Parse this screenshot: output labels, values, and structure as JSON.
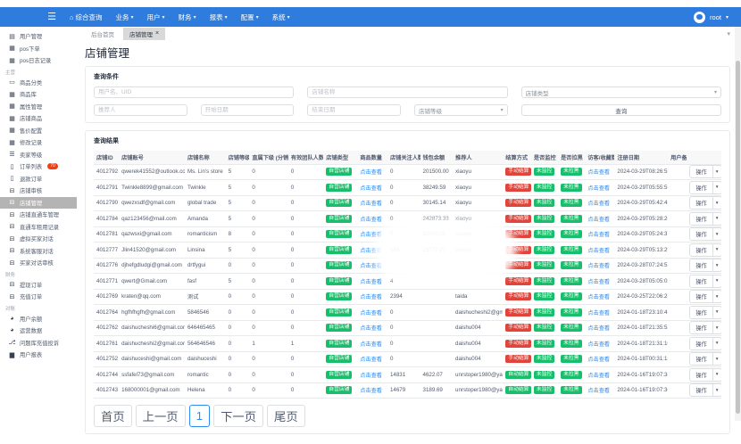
{
  "icons": {
    "hamburger": "☰",
    "home": "⌂",
    "caret-down": "▾",
    "close": "×",
    "file-text": "▤",
    "table": "▦",
    "desktop": "▭",
    "list": "☰",
    "file": "▯",
    "window": "⊟",
    "pie-chart": "◕",
    "sitemap": "⎇",
    "bar-chart": "▆"
  },
  "colors": {
    "navbar": "#2e7dde",
    "link": "#2d8cf0",
    "badge_green": "#19be6b",
    "badge_red": "#e0443a",
    "sidebar_badge": "#ed4014",
    "active_item_bg": "#b4b4b4"
  },
  "topbar": {
    "nav": [
      {
        "label": "综合查询",
        "icon": "home",
        "caret": false
      },
      {
        "label": "业务",
        "caret": true
      },
      {
        "label": "用户",
        "caret": true
      },
      {
        "label": "财务",
        "caret": true
      },
      {
        "label": "报表",
        "caret": true
      },
      {
        "label": "配置",
        "caret": true
      },
      {
        "label": "系统",
        "caret": true
      }
    ],
    "user": {
      "name": "root"
    }
  },
  "sidebar": {
    "items": [
      {
        "icon": "file-text",
        "label": "用户管理"
      },
      {
        "icon": "table",
        "label": "pos下单"
      },
      {
        "icon": "table",
        "label": "pos日志记录"
      },
      {
        "section": "主营"
      },
      {
        "icon": "desktop",
        "label": "商品分类"
      },
      {
        "icon": "table",
        "label": "商品库"
      },
      {
        "icon": "table",
        "label": "属性管理"
      },
      {
        "icon": "table",
        "label": "店铺商品"
      },
      {
        "icon": "table",
        "label": "售价配置"
      },
      {
        "icon": "table",
        "label": "修改记录"
      },
      {
        "icon": "list",
        "label": "卖家等级"
      },
      {
        "icon": "file",
        "label": "订单列表",
        "badge": "70"
      },
      {
        "icon": "file",
        "label": "退款订单"
      },
      {
        "icon": "window",
        "label": "店铺审核"
      },
      {
        "icon": "window",
        "label": "店铺管理",
        "active": true
      },
      {
        "icon": "window",
        "label": "店铺直通车管理"
      },
      {
        "icon": "window",
        "label": "直通车租用记录"
      },
      {
        "icon": "window",
        "label": "虚拟买家对话"
      },
      {
        "icon": "window",
        "label": "系统客服对话"
      },
      {
        "icon": "window",
        "label": "买家对话审核"
      },
      {
        "section": "财务"
      },
      {
        "icon": "window",
        "label": "提现订单"
      },
      {
        "icon": "window",
        "label": "充值订单"
      },
      {
        "section": "对账"
      },
      {
        "icon": "pie-chart",
        "label": "用户余额"
      },
      {
        "icon": "pie-chart",
        "label": "运营数据"
      },
      {
        "icon": "sitemap",
        "label": "问题库充值投诉"
      },
      {
        "icon": "bar-chart",
        "label": "用户报表"
      }
    ]
  },
  "tabs": {
    "home": "后台首页",
    "current": "店铺管理"
  },
  "page_title": "店铺管理",
  "filter": {
    "card_title": "查询条件",
    "username_placeholder": "用户名、UID",
    "store_name_placeholder": "店铺名称",
    "referrer_placeholder": "推荐人",
    "start_date_placeholder": "开始日期",
    "end_date_placeholder": "结束日期",
    "store_type_label": "店铺类型",
    "store_level_label": "店铺等级",
    "search_label": "查询"
  },
  "results": {
    "card_title": "查询结果",
    "columns": [
      "店铺ID",
      "店铺账号",
      "店铺名称",
      "店铺等级",
      "直属下级 (分销数)",
      "有效团队人数",
      "店铺类型",
      "商品数量",
      "店铺关注人数",
      "钱包余额",
      "推荐人",
      "结算方式",
      "是否监控",
      "是否拉黑",
      "访客/收藏数",
      "注册日期",
      "用户备注",
      ""
    ],
    "badges": {
      "store_type": "自营店铺",
      "monitor": "未监控",
      "blacklist": "未拉黑"
    },
    "view_link": "点击查看",
    "action": {
      "label": "操作",
      "caret": "▾"
    },
    "rows": [
      {
        "id": "4012792",
        "account": "qwerek41552@outlook.com",
        "name": "Ms. Lin's store",
        "level": "5",
        "sub": "0",
        "team": "0",
        "followers": "0",
        "balance": "201500.00",
        "referrer": "xiaoyu",
        "settle": "手动结算",
        "date": "2024-03-29T08:26:55"
      },
      {
        "id": "4012791",
        "account": "Twinkle8899@gmail.com",
        "name": "Twinkle",
        "level": "5",
        "sub": "0",
        "team": "0",
        "followers": "0",
        "balance": "38249.59",
        "referrer": "xiaoyu",
        "settle": "手动结算",
        "date": "2024-03-29T05:55:55"
      },
      {
        "id": "4012790",
        "account": "qwezxsdf@gmail.com",
        "name": "global trade",
        "level": "5",
        "sub": "0",
        "team": "0",
        "followers": "0",
        "balance": "30145.14",
        "referrer": "xiaoyu",
        "settle": "手动结算",
        "date": "2024-03-29T05:42:45"
      },
      {
        "id": "4012784",
        "account": "qaz123456@mail.com",
        "name": "Amanda",
        "level": "5",
        "sub": "0",
        "team": "0",
        "followers": "0",
        "balance": "242873.33",
        "referrer": "xiaoyu",
        "settle": "手动结算",
        "date": "2024-03-29T05:28:26"
      },
      {
        "id": "4012781",
        "account": "qazwsxi@gmail.com",
        "name": "romanticism",
        "level": "8",
        "sub": "0",
        "team": "0",
        "followers": "0",
        "balance": "20000.00",
        "referrer": "xiaoyu",
        "settle": "手动结算",
        "date": "2024-03-29T05:24:37"
      },
      {
        "id": "4012777",
        "account": "Jlin41520@gmail.com",
        "name": "Linsina",
        "level": "5",
        "sub": "0",
        "team": "0",
        "followers": "548",
        "balance": "23737.27",
        "referrer": "xiaoyu",
        "settle": "手动结算",
        "date": "2024-03-29T05:13:29"
      },
      {
        "id": "4012776",
        "account": "djhefgdludgi@gmail.com",
        "name": "drtfygui",
        "level": "0",
        "sub": "0",
        "team": "0",
        "followers": "",
        "balance": "",
        "referrer": "",
        "settle": "手动结算",
        "date": "2024-03-28T07:24:51"
      },
      {
        "id": "4012771",
        "account": "qwert@Gmail.com",
        "name": "fasf",
        "level": "5",
        "sub": "0",
        "team": "0",
        "followers": "4",
        "balance": "",
        "referrer": "",
        "settle": "手动结算",
        "date": "2024-03-28T05:05:02"
      },
      {
        "id": "4012769",
        "account": "kraten@qq.com",
        "name": "测试",
        "level": "0",
        "sub": "0",
        "team": "0",
        "followers": "2394",
        "balance": "",
        "referrer": "taida",
        "settle": "手动结算",
        "date": "2024-03-25T22:06:28"
      },
      {
        "id": "4012764",
        "account": "hgfhfhgfh@gmail.com",
        "name": "5846546",
        "level": "0",
        "sub": "0",
        "team": "0",
        "followers": "0",
        "balance": "",
        "referrer": "daishucheshi2@gmail.com",
        "settle": "手动结算",
        "date": "2024-01-18T23:10:45"
      },
      {
        "id": "4012762",
        "account": "daishucheshi6@gmail.com",
        "name": "646465465",
        "level": "0",
        "sub": "0",
        "team": "0",
        "followers": "0",
        "balance": "",
        "referrer": "daishu004",
        "settle": "手动结算",
        "date": "2024-01-18T21:35:53"
      },
      {
        "id": "4012761",
        "account": "daishucheshi2@gmail.com",
        "name": "564646546",
        "level": "0",
        "sub": "1",
        "team": "1",
        "followers": "0",
        "balance": "",
        "referrer": "daishu004",
        "settle": "手动结算",
        "date": "2024-01-18T21:31:10"
      },
      {
        "id": "4012752",
        "account": "daishuceshi@gmail.com",
        "name": "daishuceshi",
        "level": "0",
        "sub": "0",
        "team": "0",
        "followers": "0",
        "balance": "",
        "referrer": "daishu004",
        "settle": "手动结算",
        "date": "2024-01-18T00:31:15"
      },
      {
        "id": "4012744",
        "account": "ssfafel73@gmail.com",
        "name": "romantic",
        "level": "0",
        "sub": "0",
        "team": "0",
        "followers": "14831",
        "balance": "4622.07",
        "referrer": "unrstoper1980@yahoo.com",
        "settle": "自动结算",
        "date": "2024-01-16T19:07:38"
      },
      {
        "id": "4012743",
        "account": "168000001@gmail.com",
        "name": "Helena",
        "level": "0",
        "sub": "0",
        "team": "0",
        "followers": "14679",
        "balance": "3189.69",
        "referrer": "unrstoper1980@yahoo.com",
        "settle": "自动结算",
        "date": "2024-01-16T19:07:36"
      }
    ],
    "pagination": [
      {
        "label": "首页"
      },
      {
        "label": "上一页"
      },
      {
        "label": "1",
        "active": true
      },
      {
        "label": "下一页"
      },
      {
        "label": "尾页"
      }
    ]
  }
}
